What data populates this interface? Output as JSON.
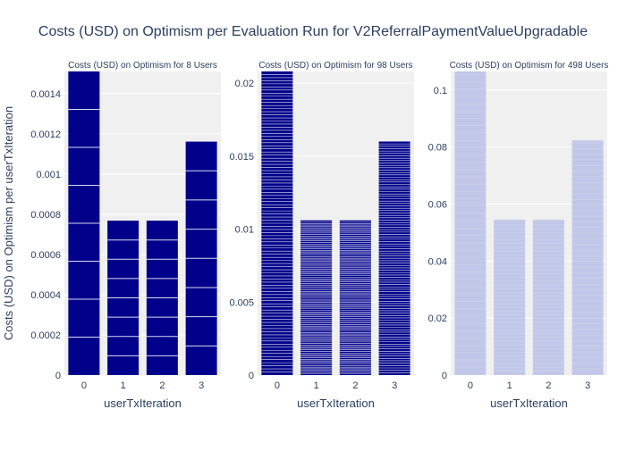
{
  "chart_data": {
    "type": "bar",
    "title": "Costs (USD) on Optimism per Evaluation Run for V2ReferralPaymentValueUpgradable",
    "ylabel": "Costs (USD) on Optimism per userTxIteration",
    "colors": {
      "plot_bg": "#f0f0f0",
      "grid": "#ffffff",
      "text": "#2a3f5f",
      "panel_bar_colors": [
        "#00008b",
        "#00008b",
        "#b8bfe6"
      ],
      "segment_line": "#ffffff"
    },
    "panels": [
      {
        "subtitle": "Costs (USD) on Optimism for 8 Users",
        "xlabel": "userTxIteration",
        "categories": [
          "0",
          "1",
          "2",
          "3"
        ],
        "values": [
          0.00151,
          0.000768,
          0.000768,
          0.001161
        ],
        "ylim": [
          0,
          0.00151
        ],
        "yticks": [
          0,
          0.0002,
          0.0004,
          0.0006,
          0.0008,
          0.001,
          0.0012,
          0.0014
        ],
        "ytick_labels": [
          "0",
          "0.0002",
          "0.0004",
          "0.0006",
          "0.0008",
          "0.001",
          "0.0012",
          "0.0014"
        ],
        "segments_per_bar": 8
      },
      {
        "subtitle": "Costs (USD) on Optimism for 98 Users",
        "xlabel": "userTxIteration",
        "categories": [
          "0",
          "1",
          "2",
          "3"
        ],
        "values": [
          0.0208,
          0.0106,
          0.0106,
          0.016
        ],
        "ylim": [
          0,
          0.0208
        ],
        "yticks": [
          0,
          0.005,
          0.01,
          0.015,
          0.02
        ],
        "ytick_labels": [
          "0",
          "0.005",
          "0.01",
          "0.015",
          "0.02"
        ],
        "segments_per_bar": 98
      },
      {
        "subtitle": "Costs (USD) on Optimism for 498 Users",
        "xlabel": "userTxIteration",
        "categories": [
          "0",
          "1",
          "2",
          "3"
        ],
        "values": [
          0.1065,
          0.0545,
          0.0545,
          0.0823
        ],
        "ylim": [
          0,
          0.1065
        ],
        "yticks": [
          0,
          0.02,
          0.04,
          0.06,
          0.08,
          0.1
        ],
        "ytick_labels": [
          "0",
          "0.02",
          "0.04",
          "0.06",
          "0.08",
          "0.1"
        ],
        "segments_per_bar": 498
      }
    ]
  }
}
